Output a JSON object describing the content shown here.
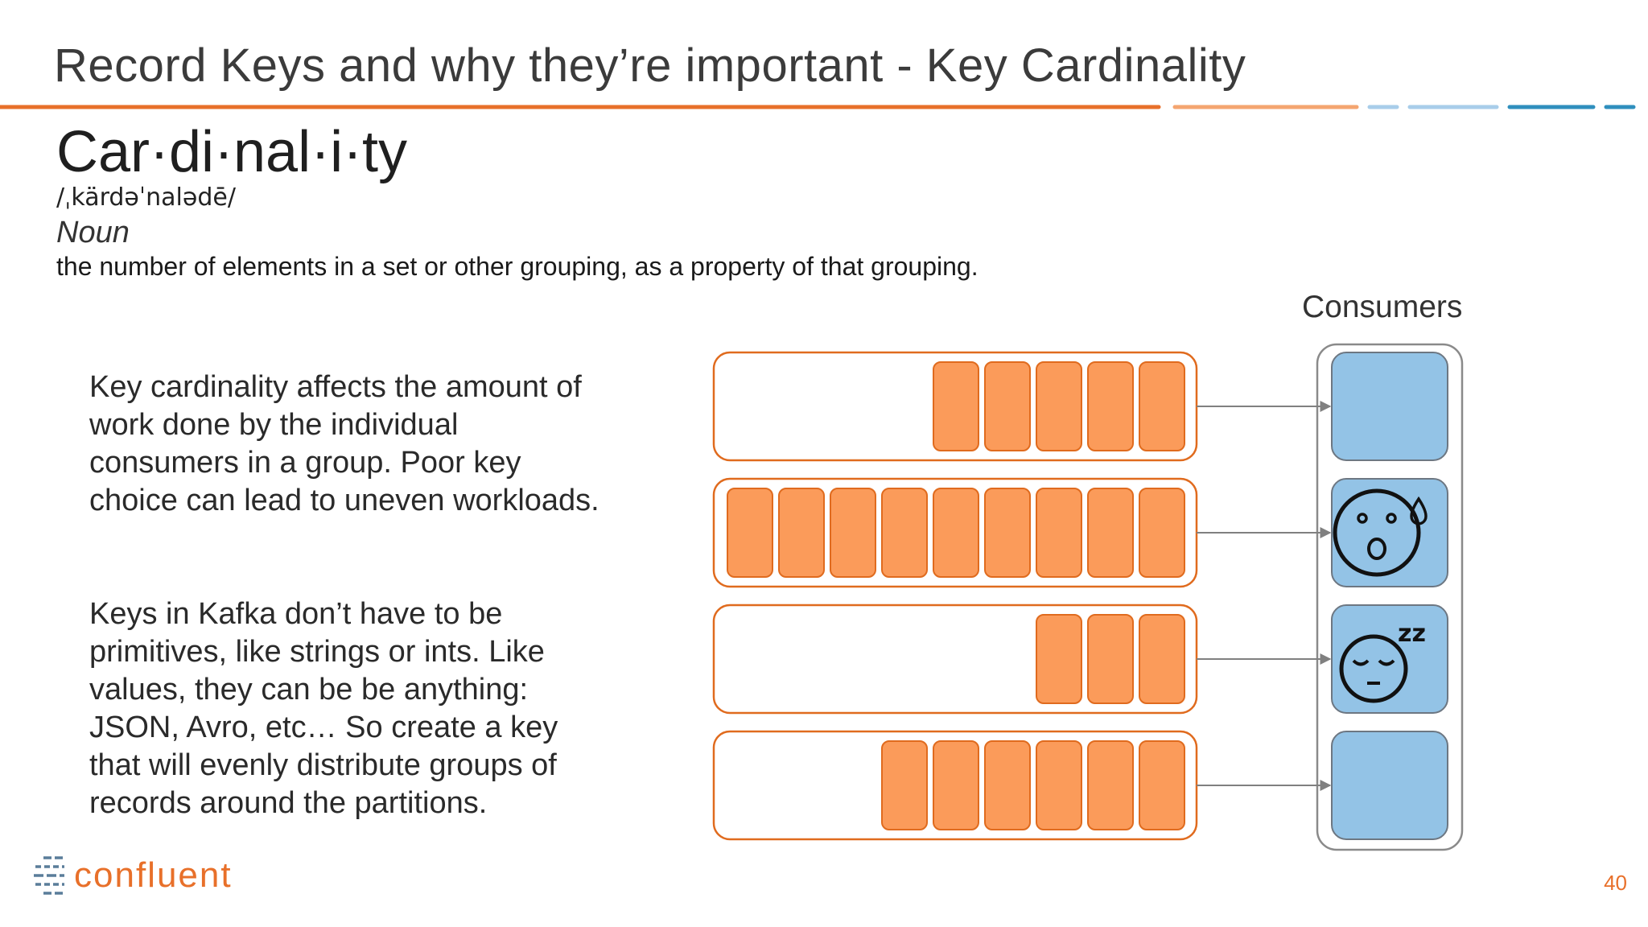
{
  "title": "Record Keys and why they’re important - Key Cardinality",
  "definition": {
    "term": "Car·di·nal·i·ty",
    "pronunciation": "/ˌkärdəˈnalədē/",
    "part_of_speech": "Noun",
    "meaning": "the number of elements in a set or other grouping, as a property of that grouping."
  },
  "body": {
    "paragraph1": "Key cardinality affects the amount of work done by the individual consumers in a group. Poor key choice can lead to uneven workloads.",
    "paragraph2": "Keys in Kafka don’t have to be primitives, like strings or ints. Like values, they can be be anything: JSON, Avro, etc… So create a key that will evenly distribute groups of records around the partitions."
  },
  "diagram": {
    "consumers_label": "Consumers",
    "partitions": [
      {
        "records": 5,
        "consumer_state": "normal"
      },
      {
        "records": 9,
        "consumer_state": "stressed"
      },
      {
        "records": 3,
        "consumer_state": "sleeping"
      },
      {
        "records": 6,
        "consumer_state": "normal"
      }
    ],
    "sleep_glyph": "zz"
  },
  "colors": {
    "accent_orange": "#e8702a",
    "record_fill": "#fb9b5a",
    "record_stroke": "#e06b1e",
    "consumer_fill": "#93c3e6",
    "consumer_stroke": "#6d7782",
    "rule_light_orange": "#f4a570",
    "rule_light_blue": "#a8cdea",
    "rule_blue": "#2f8fbe"
  },
  "footer": {
    "logo_text": "confluent",
    "page_number": "40"
  }
}
